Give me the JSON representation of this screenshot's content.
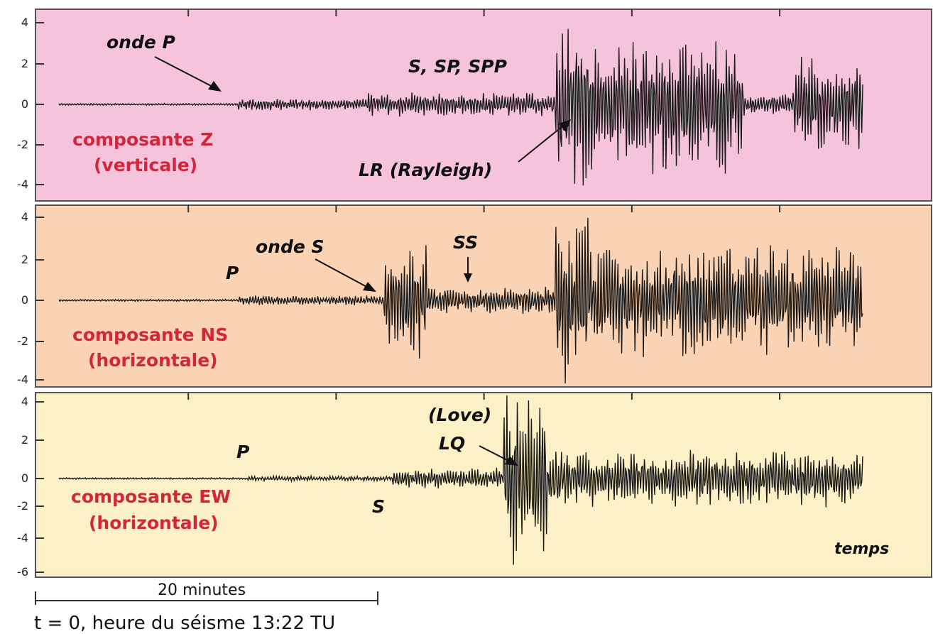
{
  "chart_data": [
    {
      "type": "line",
      "panel": "Z",
      "component_label": [
        "composante  Z",
        "(verticale)"
      ],
      "ylim": [
        -4.5,
        4.5
      ],
      "yticks": [
        "4",
        "2",
        "0",
        "-2",
        "-4"
      ],
      "annotations": [
        "onde P",
        "S, SP, SPP",
        "LR (Rayleigh)"
      ],
      "background": "#f5c4dc",
      "envelope_segments": [
        {
          "from_minute": 0.0,
          "to_minute": 10.5,
          "amplitude": 0.05
        },
        {
          "from_minute": 10.5,
          "to_minute": 18.0,
          "amplitude": 0.3
        },
        {
          "from_minute": 18.0,
          "to_minute": 29.0,
          "amplitude": 0.6
        },
        {
          "from_minute": 29.0,
          "to_minute": 31.0,
          "amplitude": 4.3
        },
        {
          "from_minute": 31.0,
          "to_minute": 40.0,
          "amplitude": 3.6
        },
        {
          "from_minute": 40.0,
          "to_minute": 43.0,
          "amplitude": 0.6
        },
        {
          "from_minute": 43.0,
          "to_minute": 47.0,
          "amplitude": 2.5
        }
      ]
    },
    {
      "type": "line",
      "panel": "NS",
      "component_label": [
        "composante  NS",
        "(horizontale)"
      ],
      "ylim": [
        -4.2,
        4.5
      ],
      "yticks": [
        "4",
        "2",
        "0",
        "-2",
        "-4"
      ],
      "annotations": [
        "P",
        "onde S",
        "SS"
      ],
      "background": "#f9d3b3",
      "envelope_segments": [
        {
          "from_minute": 0.0,
          "to_minute": 10.5,
          "amplitude": 0.05
        },
        {
          "from_minute": 10.5,
          "to_minute": 19.0,
          "amplitude": 0.25
        },
        {
          "from_minute": 19.0,
          "to_minute": 21.5,
          "amplitude": 3.0
        },
        {
          "from_minute": 21.5,
          "to_minute": 29.0,
          "amplitude": 0.7
        },
        {
          "from_minute": 29.0,
          "to_minute": 31.0,
          "amplitude": 4.2
        },
        {
          "from_minute": 31.0,
          "to_minute": 47.0,
          "amplitude": 2.8
        }
      ]
    },
    {
      "type": "line",
      "panel": "EW",
      "component_label": [
        "composante  EW",
        "(horizontale)"
      ],
      "ylim": [
        -6.2,
        4.6
      ],
      "yticks": [
        "4",
        "2",
        "0",
        "-2",
        "-4",
        "-6"
      ],
      "annotations": [
        "P",
        "S",
        "(Love)",
        "LQ",
        "temps"
      ],
      "background": "#fcf1c6",
      "envelope_segments": [
        {
          "from_minute": 0.0,
          "to_minute": 11.0,
          "amplitude": 0.05
        },
        {
          "from_minute": 11.0,
          "to_minute": 19.5,
          "amplitude": 0.15
        },
        {
          "from_minute": 19.5,
          "to_minute": 26.0,
          "amplitude": 0.6
        },
        {
          "from_minute": 26.0,
          "to_minute": 28.5,
          "amplitude": 5.5
        },
        {
          "from_minute": 28.5,
          "to_minute": 47.0,
          "amplitude": 1.6
        }
      ]
    }
  ],
  "x_axis": {
    "label": "temps",
    "scale_bar": "20 minutes",
    "scale_bar_minutes": 20
  },
  "footer": "t = 0, heure du séisme 13:22 TU",
  "colors": {
    "z_panel": "#f5c4dc",
    "ns_panel": "#f9d3b3",
    "ew_panel": "#fcf1c6",
    "component_text": "#d2263c",
    "trace": "#1a1a1a"
  }
}
